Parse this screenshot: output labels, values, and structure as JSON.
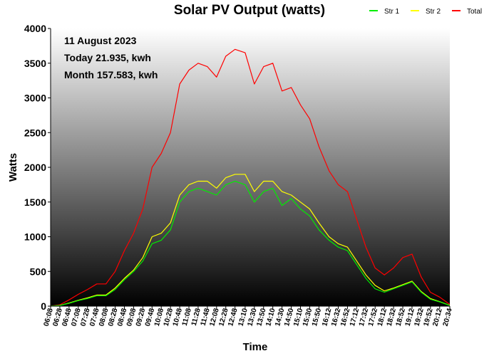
{
  "chart_data": {
    "type": "line",
    "title": "Solar PV Output (watts)",
    "xlabel": "Time",
    "ylabel": "Watts",
    "ylim": [
      0,
      4000
    ],
    "yticks": [
      0,
      500,
      1000,
      1500,
      2000,
      2500,
      3000,
      3500,
      4000
    ],
    "grid": false,
    "legend_position": "top-right",
    "annotations": [
      "11 August 2023",
      "Today 21.935, kwh",
      "Month 157.583, kwh"
    ],
    "x_tick_labels": [
      "06:08",
      "06:28",
      "06:48",
      "07:08",
      "07:28",
      "07:48",
      "08:08",
      "08:28",
      "08:48",
      "09:08",
      "09:28",
      "09:48",
      "10:08",
      "10:28",
      "10:48",
      "11:08",
      "11:28",
      "11:48",
      "12:08",
      "12:28",
      "12:48",
      "13:10",
      "13:30",
      "13:50",
      "14:10",
      "14:30",
      "14:50",
      "15:10",
      "15:30",
      "15:50",
      "16:12",
      "16:32",
      "16:52",
      "17:12",
      "17:32",
      "17:52",
      "18:12",
      "18:32",
      "18:52",
      "19:12",
      "19:32",
      "19:52",
      "20:12",
      "20:34"
    ],
    "x": [
      "06:08",
      "06:28",
      "06:48",
      "07:08",
      "07:28",
      "07:48",
      "08:08",
      "08:28",
      "08:48",
      "09:08",
      "09:28",
      "09:48",
      "10:08",
      "10:28",
      "10:48",
      "11:08",
      "11:28",
      "11:48",
      "12:08",
      "12:28",
      "12:48",
      "13:10",
      "13:30",
      "13:50",
      "14:10",
      "14:30",
      "14:50",
      "15:10",
      "15:30",
      "15:50",
      "16:12",
      "16:32",
      "16:52",
      "17:12",
      "17:32",
      "17:52",
      "18:12",
      "18:32",
      "18:52",
      "19:12",
      "19:32",
      "19:52",
      "20:12",
      "20:34"
    ],
    "series": [
      {
        "name": "Str 1",
        "color": "#00ee00",
        "values": [
          0,
          10,
          40,
          80,
          110,
          150,
          150,
          240,
          380,
          500,
          650,
          900,
          950,
          1100,
          1500,
          1650,
          1700,
          1650,
          1600,
          1750,
          1800,
          1750,
          1500,
          1650,
          1700,
          1450,
          1550,
          1400,
          1300,
          1100,
          950,
          850,
          800,
          600,
          400,
          250,
          200,
          250,
          300,
          350,
          200,
          100,
          60,
          10
        ]
      },
      {
        "name": "Str 2",
        "color": "#ffff00",
        "values": [
          0,
          10,
          45,
          85,
          120,
          160,
          160,
          260,
          400,
          520,
          700,
          1000,
          1050,
          1200,
          1600,
          1750,
          1800,
          1800,
          1700,
          1850,
          1900,
          1900,
          1650,
          1800,
          1800,
          1650,
          1600,
          1500,
          1400,
          1200,
          1000,
          900,
          850,
          650,
          450,
          300,
          220,
          260,
          310,
          360,
          210,
          110,
          65,
          12
        ]
      },
      {
        "name": "Total",
        "color": "#ff0000",
        "values": [
          0,
          20,
          90,
          170,
          240,
          320,
          320,
          500,
          800,
          1050,
          1400,
          2000,
          2200,
          2500,
          3200,
          3400,
          3500,
          3450,
          3300,
          3600,
          3700,
          3650,
          3200,
          3450,
          3500,
          3100,
          3150,
          2900,
          2700,
          2300,
          1950,
          1750,
          1650,
          1250,
          850,
          550,
          450,
          550,
          700,
          750,
          420,
          200,
          130,
          25
        ]
      }
    ]
  }
}
